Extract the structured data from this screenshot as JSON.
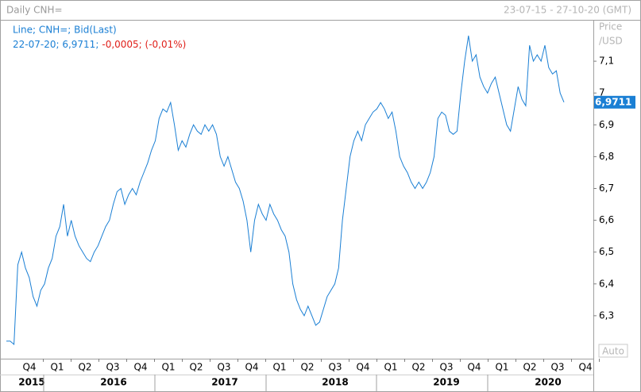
{
  "chart_data": {
    "type": "line",
    "title": "Daily CNH=",
    "date_range": "23-07-15 - 27-10-20 (GMT)",
    "legend_line": "Line; CNH=; Bid(Last)",
    "legend_info": "22-07-20; 6,9711;",
    "legend_change": "-0,0005; (-0,01%)",
    "y_axis_label": [
      "Price",
      "/USD"
    ],
    "scale_button": "Auto",
    "last_label": "6,9711",
    "quarters": [
      "Q4",
      "Q1",
      "Q2",
      "Q3",
      "Q4",
      "Q1",
      "Q2",
      "Q3",
      "Q4",
      "Q1",
      "Q2",
      "Q3",
      "Q4",
      "Q1",
      "Q2",
      "Q3",
      "Q4",
      "Q1",
      "Q2",
      "Q3",
      "Q4"
    ],
    "years": [
      "2015",
      "2016",
      "2017",
      "2018",
      "2019",
      "2020"
    ],
    "ylim": [
      6.165,
      7.23
    ],
    "yticks": [
      {
        "value": 6.3,
        "label": "6,3"
      },
      {
        "value": 6.4,
        "label": "6,4"
      },
      {
        "value": 6.5,
        "label": "6,5"
      },
      {
        "value": 6.6,
        "label": "6,6"
      },
      {
        "value": 6.7,
        "label": "6,7"
      },
      {
        "value": 6.8,
        "label": "6,8"
      },
      {
        "value": 6.9,
        "label": "6,9"
      },
      7,
      {
        "value": 7.1,
        "label": "7,1"
      }
    ],
    "series": [
      {
        "name": "CNH=",
        "color": "#1a7fd4",
        "values": [
          6.22,
          6.22,
          6.21,
          6.46,
          6.5,
          6.45,
          6.42,
          6.36,
          6.33,
          6.38,
          6.4,
          6.45,
          6.48,
          6.55,
          6.58,
          6.65,
          6.55,
          6.6,
          6.55,
          6.52,
          6.5,
          6.48,
          6.47,
          6.5,
          6.52,
          6.55,
          6.58,
          6.6,
          6.65,
          6.69,
          6.7,
          6.65,
          6.68,
          6.7,
          6.68,
          6.72,
          6.75,
          6.78,
          6.82,
          6.85,
          6.92,
          6.95,
          6.94,
          6.97,
          6.9,
          6.82,
          6.85,
          6.83,
          6.87,
          6.9,
          6.88,
          6.87,
          6.9,
          6.88,
          6.9,
          6.87,
          6.8,
          6.77,
          6.8,
          6.76,
          6.72,
          6.7,
          6.66,
          6.6,
          6.5,
          6.6,
          6.65,
          6.62,
          6.6,
          6.65,
          6.62,
          6.6,
          6.57,
          6.55,
          6.5,
          6.4,
          6.35,
          6.32,
          6.3,
          6.33,
          6.3,
          6.27,
          6.28,
          6.32,
          6.36,
          6.38,
          6.4,
          6.45,
          6.6,
          6.7,
          6.8,
          6.85,
          6.88,
          6.85,
          6.9,
          6.92,
          6.94,
          6.95,
          6.97,
          6.95,
          6.92,
          6.94,
          6.88,
          6.8,
          6.77,
          6.75,
          6.72,
          6.7,
          6.72,
          6.7,
          6.72,
          6.75,
          6.8,
          6.92,
          6.94,
          6.93,
          6.88,
          6.87,
          6.88,
          7.0,
          7.1,
          7.18,
          7.1,
          7.12,
          7.05,
          7.02,
          7.0,
          7.03,
          7.05,
          7.0,
          6.95,
          6.9,
          6.88,
          6.95,
          7.02,
          6.98,
          6.96,
          7.15,
          7.1,
          7.12,
          7.1,
          7.15,
          7.08,
          7.06,
          7.07,
          7.0,
          6.9711
        ]
      }
    ]
  }
}
